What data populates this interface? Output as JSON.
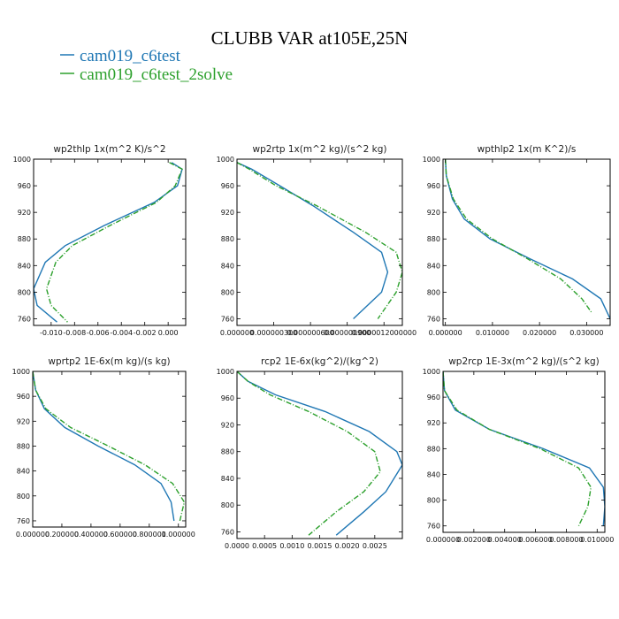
{
  "figure": {
    "title": "CLUBB VAR at105E,25N",
    "legend": [
      {
        "label": "cam019_c6test",
        "color": "#1f77b4",
        "dash": "solid"
      },
      {
        "label": "cam019_c6test_2solve",
        "color": "#2ca02c",
        "dash": "dashdot"
      }
    ]
  },
  "chart_data": [
    {
      "type": "line",
      "title": "wp2thlp  1x(m^2 K)/s^2",
      "xlim": [
        -0.0115,
        0.0015
      ],
      "ylim": [
        1000,
        750
      ],
      "xticks": [
        -0.01,
        -0.008,
        -0.006,
        -0.004,
        -0.002,
        0.0
      ],
      "xticklabels": [
        "-0.010",
        "-0.008",
        "-0.006",
        "-0.004",
        "-0.002",
        "0.000"
      ],
      "yticks": [
        760,
        800,
        840,
        880,
        920,
        960,
        1000
      ],
      "series": [
        {
          "name": "cam019_c6test",
          "x": [
            0.0003,
            0.0012,
            0.0008,
            -0.0012,
            -0.0055,
            -0.0088,
            -0.0105,
            -0.0115,
            -0.0112,
            -0.0095
          ],
          "y": [
            995,
            985,
            960,
            935,
            900,
            870,
            845,
            805,
            780,
            755
          ]
        },
        {
          "name": "cam019_c6test_2solve",
          "x": [
            0.0001,
            0.0012,
            0.0006,
            -0.001,
            -0.005,
            -0.0082,
            -0.0096,
            -0.0104,
            -0.01,
            -0.0086
          ],
          "y": [
            995,
            985,
            960,
            935,
            900,
            870,
            845,
            805,
            780,
            755
          ]
        }
      ]
    },
    {
      "type": "line",
      "title": "wp2rtp  1x(m^2 kg)/(s^2 kg)",
      "xlim": [
        0.0,
        1.35e-06
      ],
      "ylim": [
        1000,
        750
      ],
      "xticks": [
        0.0,
        3e-07,
        6e-07,
        9e-07,
        1.2e-06
      ],
      "xticklabels": [
        "0.000000",
        "0.000000300",
        "0.000000600",
        "0.000000900",
        "0.0000012000000"
      ],
      "yticks": [
        760,
        800,
        840,
        880,
        920,
        960,
        1000
      ],
      "series": [
        {
          "name": "cam019_c6test",
          "x": [
            0.0,
            1.2e-07,
            3.5e-07,
            6.2e-07,
            9.5e-07,
            1.18e-06,
            1.23e-06,
            1.18e-06,
            9.5e-07
          ],
          "y": [
            995,
            985,
            960,
            930,
            890,
            860,
            830,
            800,
            760
          ]
        },
        {
          "name": "cam019_c6test_2solve",
          "x": [
            0.0,
            1e-07,
            3.2e-07,
            6.5e-07,
            1.05e-06,
            1.3e-06,
            1.35e-06,
            1.3e-06,
            1.15e-06
          ],
          "y": [
            995,
            985,
            960,
            930,
            890,
            860,
            830,
            800,
            760
          ]
        }
      ]
    },
    {
      "type": "line",
      "title": "wpthlp2  1x(m K^2)/s",
      "xlim": [
        -0.0005,
        0.035
      ],
      "ylim": [
        1000,
        750
      ],
      "xticks": [
        0.0,
        0.01,
        0.02,
        0.03
      ],
      "xticklabels": [
        "0.000000",
        "0.010000",
        "0.020000",
        "0.030000"
      ],
      "yticks": [
        760,
        800,
        840,
        880,
        920,
        960,
        1000
      ],
      "series": [
        {
          "name": "cam019_c6test",
          "x": [
            0.0,
            0.0002,
            0.0015,
            0.004,
            0.0095,
            0.018,
            0.027,
            0.033,
            0.035
          ],
          "y": [
            1000,
            975,
            940,
            910,
            880,
            850,
            820,
            790,
            760
          ]
        },
        {
          "name": "cam019_c6test_2solve",
          "x": [
            0.0,
            0.0002,
            0.0017,
            0.0045,
            0.01,
            0.0175,
            0.0245,
            0.029,
            0.031
          ],
          "y": [
            1000,
            975,
            940,
            910,
            880,
            850,
            820,
            790,
            770
          ]
        }
      ]
    },
    {
      "type": "line",
      "title": "wprtp2  1E-6x(m kg)/(s kg)",
      "xlim": [
        0.0,
        1.05
      ],
      "ylim": [
        1000,
        750
      ],
      "xticks": [
        0.0,
        0.2,
        0.4,
        0.6,
        0.8,
        1.0
      ],
      "xticklabels": [
        "0.000000",
        "0.200000",
        "0.400000",
        "0.600000",
        "0.800000",
        "1.000000"
      ],
      "yticks": [
        760,
        800,
        840,
        880,
        920,
        960,
        1000
      ],
      "series": [
        {
          "name": "cam019_c6test",
          "x": [
            0.0,
            0.02,
            0.08,
            0.22,
            0.45,
            0.7,
            0.88,
            0.95,
            0.97
          ],
          "y": [
            1000,
            970,
            940,
            910,
            880,
            850,
            820,
            790,
            760
          ]
        },
        {
          "name": "cam019_c6test_2solve",
          "x": [
            0.0,
            0.02,
            0.09,
            0.26,
            0.52,
            0.77,
            0.96,
            1.04,
            1.01
          ],
          "y": [
            1000,
            970,
            940,
            910,
            880,
            850,
            820,
            790,
            760
          ]
        }
      ]
    },
    {
      "type": "line",
      "title": "rcp2  1E-6x(kg^2)/(kg^2)",
      "xlim": [
        0.0,
        0.003
      ],
      "ylim": [
        1000,
        750
      ],
      "xticks": [
        0.0,
        0.0005,
        0.001,
        0.0015,
        0.002,
        0.0025
      ],
      "xticklabels": [
        "0.0000",
        "0.0005",
        "0.0010",
        "0.0015",
        "0.0020",
        "0.0025"
      ],
      "yticks": [
        760,
        800,
        840,
        880,
        920,
        960,
        1000
      ],
      "series": [
        {
          "name": "cam019_c6test",
          "x": [
            0.0,
            0.0002,
            0.0007,
            0.0016,
            0.0024,
            0.0029,
            0.003,
            0.0027,
            0.0023,
            0.0018
          ],
          "y": [
            1000,
            985,
            965,
            940,
            910,
            880,
            860,
            820,
            790,
            755
          ]
        },
        {
          "name": "cam019_c6test_2solve",
          "x": [
            0.0,
            0.0002,
            0.0006,
            0.0013,
            0.002,
            0.0025,
            0.0026,
            0.0023,
            0.0018,
            0.0013
          ],
          "y": [
            1000,
            985,
            965,
            940,
            910,
            880,
            850,
            820,
            790,
            755
          ]
        }
      ]
    },
    {
      "type": "line",
      "title": "wp2rcp  1E-3x(m^2 kg)/(s^2 kg)",
      "xlim": [
        0.0,
        0.0105
      ],
      "ylim": [
        1000,
        750
      ],
      "xticks": [
        0.0,
        0.002,
        0.004,
        0.006,
        0.008,
        0.01
      ],
      "xticklabels": [
        "0.000000",
        "0.002000",
        "0.004000",
        "0.006000",
        "0.008000",
        "0.010000"
      ],
      "yticks": [
        760,
        800,
        840,
        880,
        920,
        960,
        1000
      ],
      "series": [
        {
          "name": "cam019_c6test",
          "x": [
            0.0,
            0.0001,
            0.0008,
            0.003,
            0.0065,
            0.0095,
            0.0104,
            0.0105,
            0.0104
          ],
          "y": [
            1000,
            970,
            940,
            910,
            880,
            850,
            820,
            790,
            760
          ]
        },
        {
          "name": "cam019_c6test_2solve",
          "x": [
            0.0,
            0.0001,
            0.0009,
            0.003,
            0.0063,
            0.0088,
            0.0096,
            0.0094,
            0.0088
          ],
          "y": [
            1000,
            970,
            940,
            910,
            880,
            850,
            820,
            790,
            760
          ]
        }
      ]
    }
  ]
}
